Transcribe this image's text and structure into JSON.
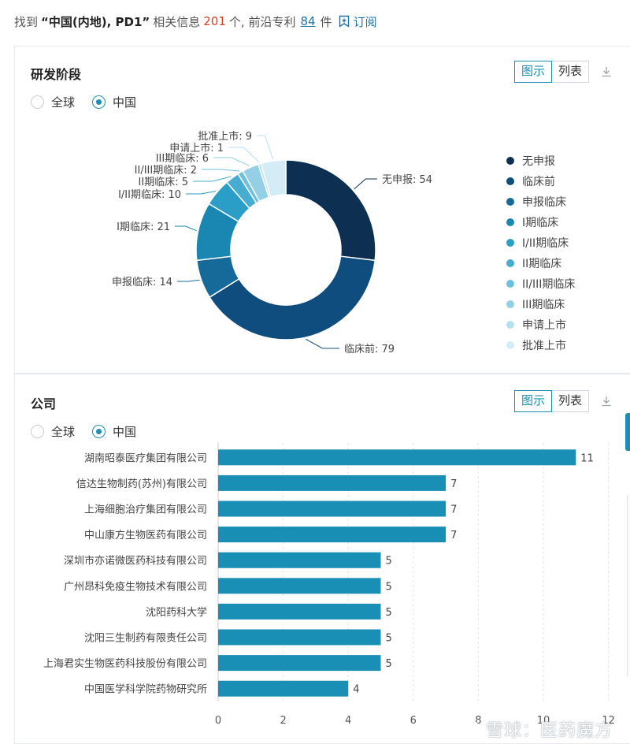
{
  "header": {
    "found_prefix": "找到",
    "query": "“中国(内地), PD1”",
    "info_prefix": "相关信息",
    "info_count": "201",
    "info_suffix": "个, 前沿专利",
    "patent_count": "84",
    "patent_suffix": "件",
    "subscribe_label": "订阅"
  },
  "panels": {
    "stage": {
      "title": "研发阶段",
      "view_chart": "图示",
      "view_list": "列表",
      "radio_global": "全球",
      "radio_china": "中国"
    },
    "company": {
      "title": "公司",
      "view_chart": "图示",
      "view_list": "列表",
      "radio_global": "全球",
      "radio_china": "中国"
    }
  },
  "colors": {
    "accent": "#1a8fb5",
    "bar": "#1a8fb5",
    "red_count": "#d9401f"
  },
  "icons": {
    "subscribe": "bookmark-plus-icon",
    "download": "download-icon"
  },
  "watermark": "雪球：医药魔方",
  "chart_data": [
    {
      "type": "pie",
      "variant": "donut",
      "title": "",
      "categories": [
        "无申报",
        "临床前",
        "申报临床",
        "I期临床",
        "I/II期临床",
        "II期临床",
        "II/III期临床",
        "III期临床",
        "申请上市",
        "批准上市"
      ],
      "values": [
        54,
        79,
        14,
        21,
        10,
        5,
        2,
        6,
        1,
        9
      ],
      "colors": [
        "#0d2f52",
        "#0f4d7f",
        "#166a9a",
        "#1a87b3",
        "#2a9ec6",
        "#46acd0",
        "#6dbfdc",
        "#93d0e6",
        "#b6dfee",
        "#d4ecf5"
      ],
      "legend": "right"
    },
    {
      "type": "bar",
      "orientation": "horizontal",
      "title": "",
      "categories": [
        "湖南昭泰医疗集团有限公司",
        "信达生物制药(苏州)有限公司",
        "上海细胞治疗集团有限公司",
        "中山康方生物医药有限公司",
        "深圳市亦诺微医药科技有限公司",
        "广州昂科免疫生物技术有限公司",
        "沈阳药科大学",
        "沈阳三生制药有限责任公司",
        "上海君实生物医药科技股份有限公司",
        "中国医学科学院药物研究所"
      ],
      "values": [
        11,
        7,
        7,
        7,
        5,
        5,
        5,
        5,
        5,
        4
      ],
      "xlim": [
        0,
        12
      ],
      "xticks": [
        "0",
        "2",
        "4",
        "6",
        "8",
        "10",
        "12"
      ],
      "grid": true,
      "data_labels": true
    }
  ]
}
